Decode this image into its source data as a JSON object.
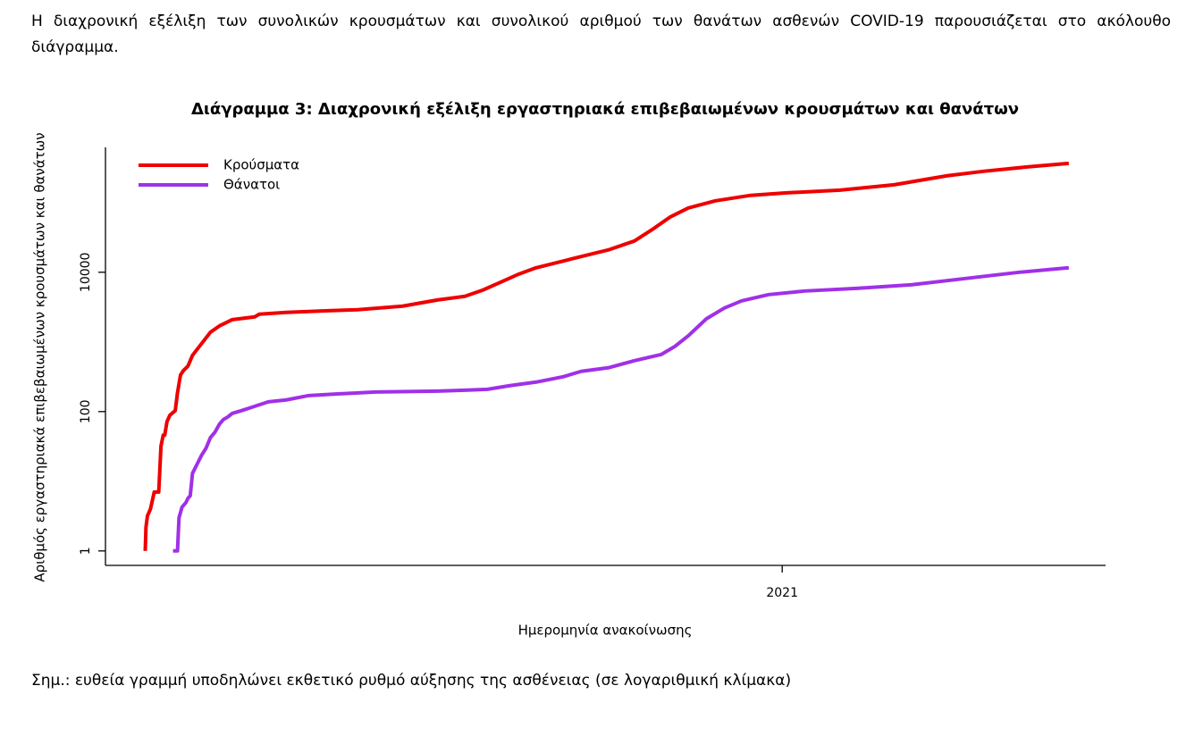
{
  "intro": "Η διαχρονική εξέλιξη των συνολικών κρουσμάτων και συνολικού αριθμού των θανάτων ασθενών COVID-19 παρουσιάζεται στο ακόλουθο διάγραμμα.",
  "chart_data": {
    "type": "line",
    "title": "Διάγραμμα 3: Διαχρονική εξέλιξη εργαστηριακά επιβεβαιωμένων κρουσμάτων και θανάτων",
    "x_label": "Ημερομηνία ανακοίνωσης",
    "y_label": "Αριθμός εργαστηριακά επιβεβαιωμένων κρουσμάτων και θανάτων",
    "xlim": [
      2020.098,
      2021.431
    ],
    "xticks": [
      2021
    ],
    "ylim": [
      0.62,
      620000
    ],
    "yticks": [
      1,
      100,
      10000
    ],
    "yscale": "log",
    "grid": false,
    "legend": "top-left",
    "series": [
      {
        "name": "Κρούσματα",
        "color": "#ee0000",
        "x": [
          2020.151,
          2020.152,
          2020.154,
          2020.158,
          2020.163,
          2020.169,
          2020.172,
          2020.175,
          2020.177,
          2020.18,
          2020.184,
          2020.188,
          2020.191,
          2020.194,
          2020.198,
          2020.202,
          2020.208,
          2020.214,
          2020.226,
          2020.238,
          2020.25,
          2020.267,
          2020.297,
          2020.303,
          2020.339,
          2020.398,
          2020.434,
          2020.494,
          2020.541,
          2020.577,
          2020.601,
          2020.625,
          2020.649,
          2020.672,
          2020.72,
          2020.768,
          2020.803,
          2020.827,
          2020.851,
          2020.875,
          2020.911,
          2020.958,
          2021.006,
          2021.077,
          2021.149,
          2021.22,
          2021.268,
          2021.328,
          2021.382
        ],
        "values": [
          1,
          2.2,
          3.2,
          4,
          7,
          7,
          32,
          46,
          46,
          72,
          89,
          97,
          103,
          186,
          335,
          389,
          451,
          642,
          942,
          1380,
          1700,
          2090,
          2290,
          2500,
          2650,
          2810,
          2900,
          3260,
          4010,
          4510,
          5550,
          7230,
          9420,
          11600,
          15600,
          20900,
          28100,
          41200,
          62400,
          83800,
          106000,
          127000,
          138000,
          151000,
          180000,
          243000,
          281000,
          326000,
          366000
        ]
      },
      {
        "name": "Θάνατοι",
        "color": "#a030e8",
        "x": [
          2020.188,
          2020.194,
          2020.196,
          2020.2,
          2020.205,
          2020.208,
          2020.211,
          2020.214,
          2020.22,
          2020.226,
          2020.232,
          2020.238,
          2020.244,
          2020.25,
          2020.255,
          2020.261,
          2020.267,
          2020.279,
          2020.297,
          2020.315,
          2020.339,
          2020.369,
          2020.41,
          2020.458,
          2020.541,
          2020.577,
          2020.607,
          2020.637,
          2020.672,
          2020.708,
          2020.732,
          2020.768,
          2020.803,
          2020.839,
          2020.857,
          2020.875,
          2020.899,
          2020.923,
          2020.946,
          2020.982,
          2021.03,
          2021.101,
          2021.173,
          2021.244,
          2021.316,
          2021.382
        ],
        "values": [
          1,
          1,
          2.98,
          4.25,
          4.9,
          5.7,
          6.2,
          13,
          17.5,
          23.5,
          29.8,
          42.5,
          50.7,
          66.2,
          76.7,
          83.8,
          94.3,
          103,
          119,
          138,
          147,
          170,
          180,
          191,
          197,
          203,
          209,
          236,
          265,
          316,
          378,
          425,
          538,
          662,
          863,
          1230,
          2150,
          3070,
          3890,
          4780,
          5380,
          5880,
          6620,
          8130,
          10000,
          11600
        ]
      }
    ]
  },
  "note": "Σημ.: ευθεία γραμμή υποδηλώνει εκθετικό ρυθμό αύξησης της ασθένειας (σε λογαριθμική κλίμακα)"
}
